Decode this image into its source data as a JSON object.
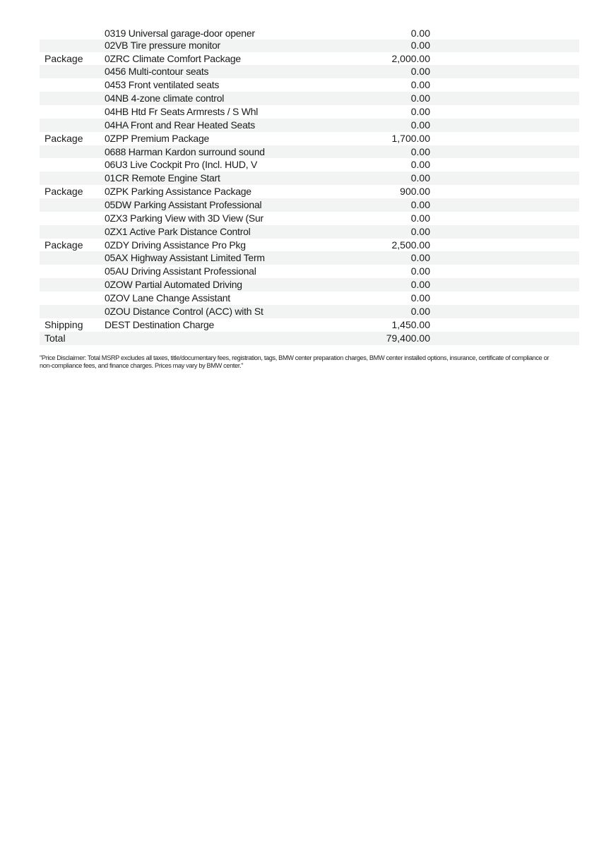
{
  "rows": [
    {
      "category": "",
      "description": "0319 Universal garage-door opener",
      "price": "0.00"
    },
    {
      "category": "",
      "description": "02VB Tire pressure monitor",
      "price": "0.00"
    },
    {
      "category": "Package",
      "description": "0ZRC Climate Comfort Package",
      "price": "2,000.00"
    },
    {
      "category": "",
      "description": "0456 Multi-contour seats",
      "price": "0.00"
    },
    {
      "category": "",
      "description": "0453 Front ventilated seats",
      "price": "0.00"
    },
    {
      "category": "",
      "description": "04NB 4-zone climate control",
      "price": "0.00"
    },
    {
      "category": "",
      "description": "04HB Htd Fr Seats Armrests / S Whl",
      "price": "0.00"
    },
    {
      "category": "",
      "description": "04HA Front and Rear Heated Seats",
      "price": "0.00"
    },
    {
      "category": "Package",
      "description": "0ZPP Premium Package",
      "price": "1,700.00"
    },
    {
      "category": "",
      "description": "0688 Harman Kardon surround sound",
      "price": "0.00"
    },
    {
      "category": "",
      "description": "06U3 Live Cockpit Pro (Incl. HUD, V",
      "price": "0.00"
    },
    {
      "category": "",
      "description": "01CR Remote Engine Start",
      "price": "0.00"
    },
    {
      "category": "Package",
      "description": "0ZPK Parking Assistance Package",
      "price": "900.00"
    },
    {
      "category": "",
      "description": "05DW Parking Assistant Professional",
      "price": "0.00"
    },
    {
      "category": "",
      "description": "0ZX3 Parking View with 3D View (Sur",
      "price": "0.00"
    },
    {
      "category": "",
      "description": "0ZX1 Active Park Distance Control",
      "price": "0.00"
    },
    {
      "category": "Package",
      "description": "0ZDY Driving Assistance Pro Pkg",
      "price": "2,500.00"
    },
    {
      "category": "",
      "description": "05AX Highway Assistant Limited Term",
      "price": "0.00"
    },
    {
      "category": "",
      "description": "05AU Driving Assistant Professional",
      "price": "0.00"
    },
    {
      "category": "",
      "description": "0ZOW Partial Automated Driving",
      "price": "0.00"
    },
    {
      "category": "",
      "description": "0ZOV Lane Change Assistant",
      "price": "0.00"
    },
    {
      "category": "",
      "description": "0ZOU Distance Control (ACC) with St",
      "price": "0.00"
    },
    {
      "category": "Shipping",
      "description": "DEST Destination Charge",
      "price": "1,450.00"
    },
    {
      "category": "Total",
      "description": "",
      "price": "79,400.00"
    }
  ],
  "disclaimer": "\"Price Disclaimer: Total MSRP excludes all taxes, title/documentary fees, registration, tags, BMW center preparation charges, BMW center installed options, insurance, certificate of compliance or non-compliance fees, and finance charges. Prices may vary by BMW center.\"",
  "colors": {
    "row_shade": "#f2f3f3",
    "text": "#1a1a1a"
  }
}
